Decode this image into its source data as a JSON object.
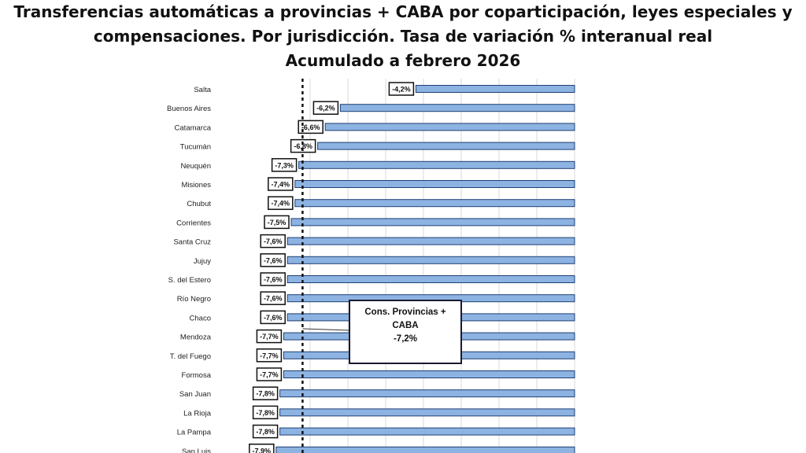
{
  "chart_data": {
    "type": "bar",
    "orientation": "horizontal",
    "title_lines": [
      "Transferencias automáticas a provincias + CABA por coparticipación, leyes especiales y",
      "compensaciones. Por jurisdicción. Tasa de variación % interanual real",
      "Acumulado a febrero 2026"
    ],
    "categories": [
      "Salta",
      "Buenos Aires",
      "Catamarca",
      "Tucumán",
      "Neuquén",
      "Misiones",
      "Chubut",
      "Corrientes",
      "Santa Cruz",
      "Jujuy",
      "S. del Estero",
      "Río Negro",
      "Chaco",
      "Mendoza",
      "T. del Fuego",
      "Formosa",
      "San Juan",
      "La Rioja",
      "La Pampa",
      "San Luis"
    ],
    "values": [
      -4.2,
      -6.2,
      -6.6,
      -6.8,
      -7.3,
      -7.4,
      -7.4,
      -7.5,
      -7.6,
      -7.6,
      -7.6,
      -7.6,
      -7.6,
      -7.7,
      -7.7,
      -7.7,
      -7.8,
      -7.8,
      -7.8,
      -7.9
    ],
    "data_labels": [
      "-4,2%",
      "-6,2%",
      "-6,6%",
      "-6,8%",
      "-7,3%",
      "-7,4%",
      "-7,4%",
      "-7,5%",
      "-7,6%",
      "-7,6%",
      "-7,6%",
      "-7,6%",
      "-7,6%",
      "-7,7%",
      "-7,7%",
      "-7,7%",
      "-7,8%",
      "-7,8%",
      "-7,8%",
      "-7,9%"
    ],
    "xlim": [
      -9,
      0
    ],
    "grid": true,
    "reference_line": {
      "value": -7.2,
      "style": "dashed",
      "label_lines": [
        "Cons. Provincias +",
        "CABA",
        "-7,2%"
      ]
    },
    "colors": {
      "bar_fill": "#8db3e2",
      "bar_stroke": "#1f3f73",
      "grid": "#d9d9d9"
    }
  }
}
